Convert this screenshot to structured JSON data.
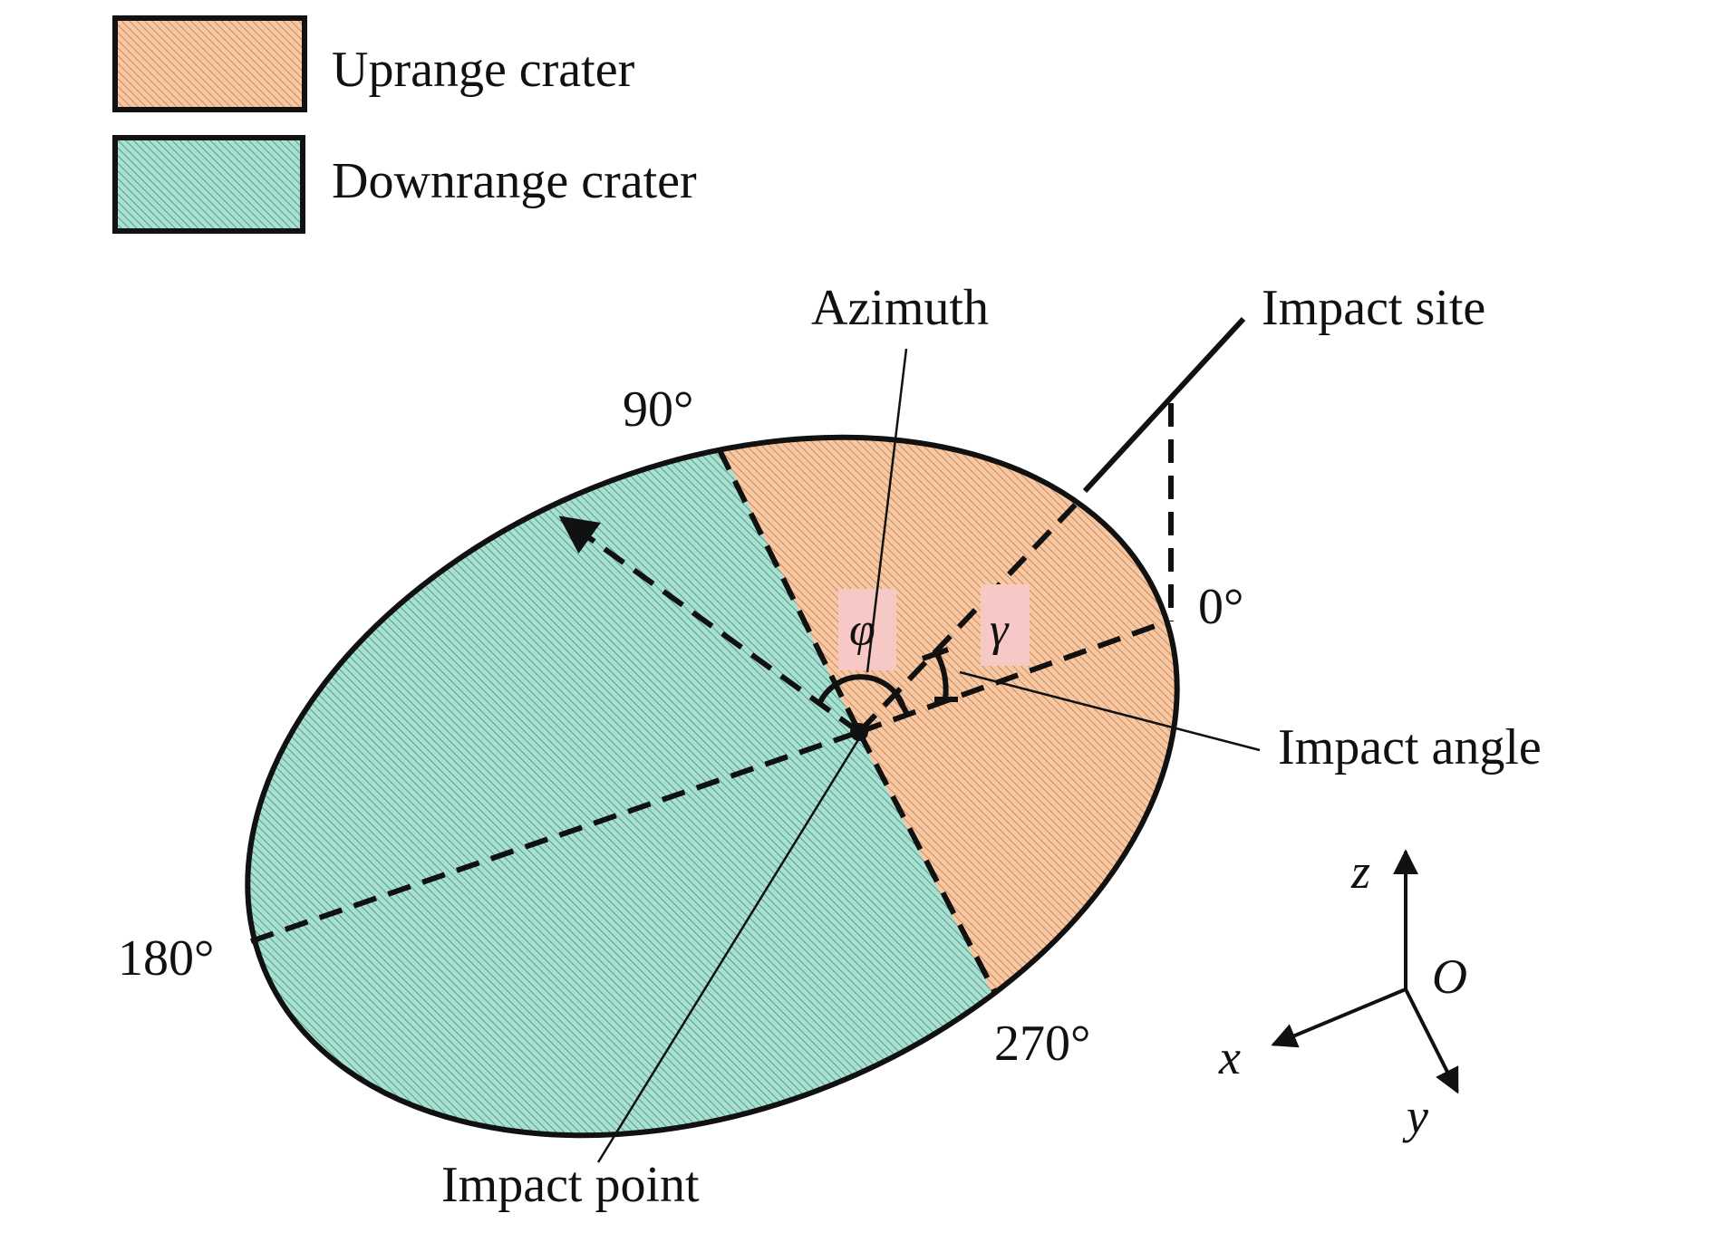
{
  "legend": {
    "uprange_label": "Uprange crater",
    "downrange_label": "Downrange crater"
  },
  "labels": {
    "azimuth": "Azimuth",
    "impact_site": "Impact site",
    "impact_angle": "Impact angle",
    "impact_point": "Impact point",
    "deg0": "0°",
    "deg90": "90°",
    "deg180": "180°",
    "deg270": "270°",
    "phi": "φ",
    "gamma": "γ"
  },
  "axes": {
    "z": "z",
    "x": "x",
    "y": "y",
    "origin": "O"
  },
  "colors": {
    "uprange_fill": "#f7c8a2",
    "uprange_hatch": "#c98b63",
    "downrange_fill": "#a8e0d2",
    "downrange_hatch": "#5c9c8d",
    "angle_box": "#f6c9c6",
    "stroke": "#111111"
  }
}
